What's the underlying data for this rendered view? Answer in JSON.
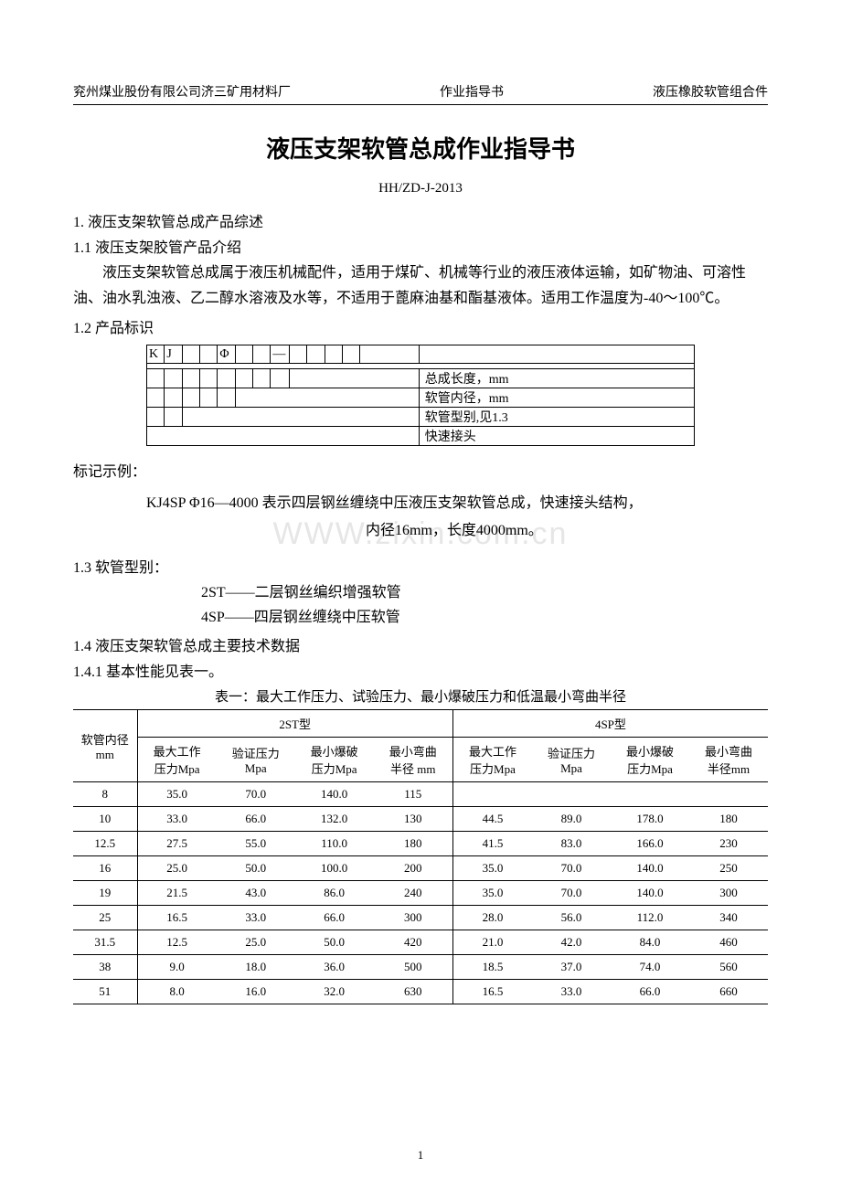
{
  "header": {
    "left": "兖州煤业股份有限公司济三矿用材料厂",
    "center": "作业指导书",
    "right": "液压橡胶软管组合件"
  },
  "title": "液压支架软管总成作业指导书",
  "doc_code": "HH/ZD-J-2013",
  "s1": "1. 液压支架软管总成产品综述",
  "s1_1": "1.1 液压支架胶管产品介绍",
  "intro_para": "液压支架软管总成属于液压机械配件，适用于煤矿、机械等行业的液压液体运输，如矿物油、可溶性油、油水乳浊液、乙二醇水溶液及水等，不适用于蓖麻油基和酯基液体。适用工作温度为-40～100℃。",
  "s1_2": "1.2 产品标识",
  "marking": {
    "prefix_k": "K",
    "prefix_j": "J",
    "phi": "Φ",
    "dash": "—",
    "rows": [
      "总成长度，mm",
      "软管内径，mm",
      "软管型别,见1.3",
      "快速接头"
    ]
  },
  "example_label": "标记示例：",
  "example_text1": "KJ4SP Φ16—4000    表示四层钢丝缠绕中压液压支架软管总成，快速接头结构，",
  "example_text2": "内径16mm，长度4000mm。",
  "watermark": "WWW.zixin.com.cn",
  "s1_3": "1.3 软管型别：",
  "type_list": [
    "2ST——二层钢丝编织增强软管",
    "4SP——四层钢丝缠绕中压软管"
  ],
  "s1_4": "1.4 液压支架软管总成主要技术数据",
  "s1_4_1": "1.4.1 基本性能见表一。",
  "table_caption": "表一：最大工作压力、试验压力、最小爆破压力和低温最小弯曲半径",
  "table": {
    "col_diameter": "软管内径",
    "col_diameter_unit": "mm",
    "group_2st": "2ST型",
    "group_4sp": "4SP型",
    "sub_cols": [
      "最大工作\n压力Mpa",
      "验证压力\nMpa",
      "最小爆破\n压力Mpa",
      "最小弯曲\n半径 mm"
    ],
    "sub_cols_4sp": [
      "最大工作\n压力Mpa",
      "验证压力\nMpa",
      "最小爆破\n压力Mpa",
      "最小弯曲\n半径mm"
    ],
    "rows": [
      {
        "d": "8",
        "a": [
          "35.0",
          "70.0",
          "140.0",
          "115"
        ],
        "b": [
          "",
          "",
          "",
          ""
        ]
      },
      {
        "d": "10",
        "a": [
          "33.0",
          "66.0",
          "132.0",
          "130"
        ],
        "b": [
          "44.5",
          "89.0",
          "178.0",
          "180"
        ]
      },
      {
        "d": "12.5",
        "a": [
          "27.5",
          "55.0",
          "110.0",
          "180"
        ],
        "b": [
          "41.5",
          "83.0",
          "166.0",
          "230"
        ]
      },
      {
        "d": "16",
        "a": [
          "25.0",
          "50.0",
          "100.0",
          "200"
        ],
        "b": [
          "35.0",
          "70.0",
          "140.0",
          "250"
        ]
      },
      {
        "d": "19",
        "a": [
          "21.5",
          "43.0",
          "86.0",
          "240"
        ],
        "b": [
          "35.0",
          "70.0",
          "140.0",
          "300"
        ]
      },
      {
        "d": "25",
        "a": [
          "16.5",
          "33.0",
          "66.0",
          "300"
        ],
        "b": [
          "28.0",
          "56.0",
          "112.0",
          "340"
        ]
      },
      {
        "d": "31.5",
        "a": [
          "12.5",
          "25.0",
          "50.0",
          "420"
        ],
        "b": [
          "21.0",
          "42.0",
          "84.0",
          "460"
        ]
      },
      {
        "d": "38",
        "a": [
          "9.0",
          "18.0",
          "36.0",
          "500"
        ],
        "b": [
          "18.5",
          "37.0",
          "74.0",
          "560"
        ]
      },
      {
        "d": "51",
        "a": [
          "8.0",
          "16.0",
          "32.0",
          "630"
        ],
        "b": [
          "16.5",
          "33.0",
          "66.0",
          "660"
        ]
      }
    ]
  },
  "page_number": "1",
  "colors": {
    "text": "#000000",
    "bg": "#ffffff",
    "watermark": "#e6e6e6",
    "dotted": "#888888"
  }
}
